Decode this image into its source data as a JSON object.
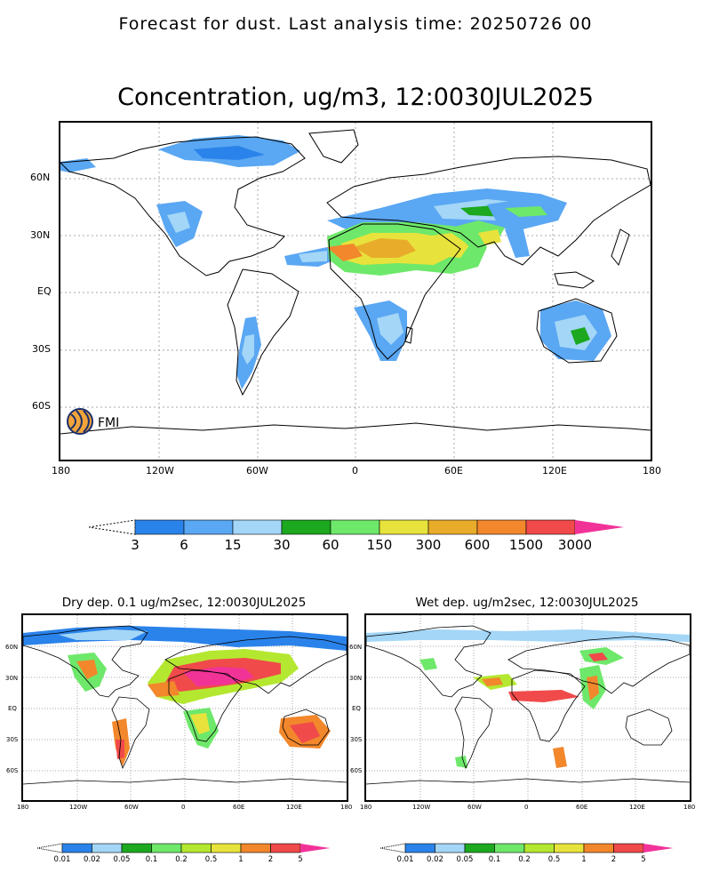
{
  "header": {
    "text": "Forecast for dust. Last analysis time: 20250726 00"
  },
  "main_map": {
    "title": "Concentration, ug/m3, 12:0030JUL2025",
    "x_ticks": [
      "180",
      "120W",
      "60W",
      "0",
      "60E",
      "120E",
      "180"
    ],
    "y_ticks": [
      "60N",
      "30N",
      "EQ",
      "30S",
      "60S"
    ],
    "logo_text": "FMI",
    "colorbar": {
      "labels": [
        "3",
        "6",
        "15",
        "30",
        "60",
        "150",
        "300",
        "600",
        "1500",
        "3000"
      ],
      "colors": [
        "#2a83ea",
        "#5aa7f3",
        "#a3d6f7",
        "#1ca81f",
        "#6ee86a",
        "#e8e33c",
        "#e8ac2a",
        "#f2872c",
        "#f04a4a",
        "#f13398"
      ]
    }
  },
  "dry_map": {
    "title": "Dry dep. 0.1 ug/m2sec, 12:0030JUL2025",
    "x_ticks": [
      "180",
      "120W",
      "60W",
      "0",
      "60E",
      "120E",
      "180"
    ],
    "y_ticks": [
      "60N",
      "30N",
      "EQ",
      "30S",
      "60S"
    ],
    "colorbar": {
      "labels": [
        "0.01",
        "0.02",
        "0.05",
        "0.1",
        "0.2",
        "0.5",
        "1",
        "2",
        "5"
      ],
      "colors": [
        "#2a83ea",
        "#a3d6f7",
        "#1ca81f",
        "#6ee86a",
        "#b4e830",
        "#e8e33c",
        "#f2872c",
        "#f04a4a",
        "#f13398"
      ]
    }
  },
  "wet_map": {
    "title": "Wet dep. ug/m2sec, 12:0030JUL2025",
    "x_ticks": [
      "180",
      "120W",
      "60W",
      "0",
      "60E",
      "120E",
      "180"
    ],
    "y_ticks": [
      "60N",
      "30N",
      "EQ",
      "30S",
      "60S"
    ],
    "colorbar": {
      "labels": [
        "0.01",
        "0.02",
        "0.05",
        "0.1",
        "0.2",
        "0.5",
        "1",
        "2",
        "5"
      ],
      "colors": [
        "#2a83ea",
        "#a3d6f7",
        "#1ca81f",
        "#6ee86a",
        "#b4e830",
        "#e8e33c",
        "#f2872c",
        "#f04a4a",
        "#f13398"
      ]
    }
  }
}
